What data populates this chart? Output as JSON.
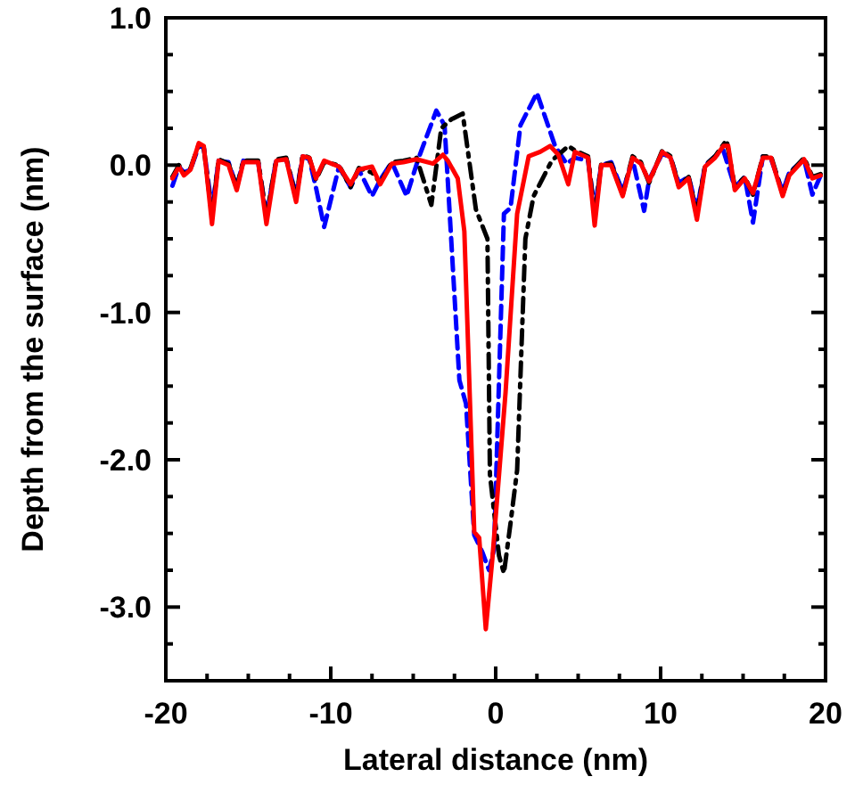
{
  "chart_data": {
    "type": "line",
    "xlabel": "Lateral distance (nm)",
    "ylabel": "Depth from the surface (nm)",
    "xlim": [
      -20,
      20
    ],
    "ylim": [
      -3.5,
      1.0
    ],
    "xticks": [
      -20,
      {
        "value": -17.5,
        "label": null
      },
      {
        "value": -15,
        "label": null
      },
      {
        "value": -12.5,
        "label": null
      },
      -10,
      {
        "value": -7.5,
        "label": null
      },
      {
        "value": -5,
        "label": null
      },
      {
        "value": -2.5,
        "label": null
      },
      0,
      {
        "value": 2.5,
        "label": null
      },
      {
        "value": 5,
        "label": null
      },
      {
        "value": 7.5,
        "label": null
      },
      10,
      {
        "value": 12.5,
        "label": null
      },
      {
        "value": 15,
        "label": null
      },
      {
        "value": 17.5,
        "label": null
      },
      20
    ],
    "yticks": [
      {
        "value": -3.5,
        "label": null
      },
      {
        "value": -3.25,
        "label": null
      },
      "-3.0",
      {
        "value": -2.75,
        "label": null
      },
      {
        "value": -2.5,
        "label": null
      },
      {
        "value": -2.25,
        "label": null
      },
      {
        "value": -2,
        "label": "-2.0"
      },
      {
        "value": -1.75,
        "label": null
      },
      {
        "value": -1.5,
        "label": null
      },
      {
        "value": -1.25,
        "label": null
      },
      {
        "value": -1,
        "label": "-1.0"
      },
      {
        "value": -0.75,
        "label": null
      },
      {
        "value": -0.5,
        "label": null
      },
      {
        "value": -0.25,
        "label": null
      },
      {
        "value": 0,
        "label": "0.0"
      },
      {
        "value": 0.25,
        "label": null
      },
      {
        "value": 0.5,
        "label": null
      },
      {
        "value": 0.75,
        "label": null
      },
      {
        "value": 1,
        "label": "1.0"
      }
    ],
    "grid": false,
    "marker": "none",
    "series": [
      {
        "color": "#0000ff",
        "line_style": "dashed",
        "x": [
          -19.6,
          -19.2,
          -18.9,
          -18.5,
          -18.0,
          -17.7,
          -17.2,
          -16.8,
          -16.2,
          -15.7,
          -15.3,
          -14.4,
          -13.9,
          -13.3,
          -12.7,
          -12.1,
          -11.7,
          -11.3,
          -10.9,
          -10.4,
          -9.5,
          -8.8,
          -8.3,
          -7.5,
          -7.0,
          -6.3,
          -5.4,
          -4.7,
          -3.6,
          -3.1,
          -2.2,
          -1.8,
          -1.3,
          -0.8,
          -0.4,
          -0.1,
          0.5,
          0.9,
          1.5,
          2.5,
          3.6,
          4.3,
          4.8,
          5.6,
          6.0,
          6.4,
          7.0,
          7.7,
          8.3,
          9.0,
          9.3,
          10.1,
          10.6,
          11.1,
          11.7,
          12.2,
          12.7,
          13.3,
          13.8,
          14.5,
          15.1,
          15.6,
          16.2,
          16.7,
          17.4,
          17.8,
          18.7,
          19.2,
          19.7
        ],
        "values": [
          -0.14,
          -0.01,
          -0.05,
          -0.03,
          0.13,
          0.12,
          -0.3,
          0.03,
          0.02,
          -0.15,
          0.03,
          0.02,
          -0.35,
          0.04,
          0.04,
          -0.2,
          0.06,
          0.04,
          -0.15,
          -0.42,
          -0.01,
          -0.15,
          -0.03,
          -0.21,
          -0.1,
          0.02,
          -0.21,
          0.04,
          0.37,
          0.27,
          -1.46,
          -1.62,
          -2.51,
          -2.63,
          -2.75,
          -2.61,
          -0.33,
          -0.29,
          0.27,
          0.49,
          0.13,
          0.01,
          0.05,
          0.03,
          -0.3,
          0.0,
          0.02,
          -0.18,
          0.04,
          -0.31,
          -0.1,
          0.08,
          0.05,
          -0.12,
          -0.08,
          -0.3,
          0.0,
          0.06,
          0.1,
          -0.15,
          -0.08,
          -0.39,
          0.06,
          0.04,
          -0.18,
          -0.05,
          0.04,
          -0.2,
          -0.07
        ]
      },
      {
        "color": "#000000",
        "line_style": "dashdot",
        "x": [
          -19.6,
          -19.2,
          -18.9,
          -18.5,
          -18.0,
          -17.7,
          -17.2,
          -16.8,
          -16.2,
          -15.7,
          -15.3,
          -14.4,
          -13.9,
          -13.3,
          -12.7,
          -12.1,
          -11.7,
          -11.3,
          -10.9,
          -10.4,
          -9.5,
          -8.8,
          -8.3,
          -7.5,
          -7.0,
          -6.3,
          -5.6,
          -4.8,
          -3.9,
          -3.3,
          -2.7,
          -2.0,
          -1.2,
          -0.5,
          -0.35,
          0.2,
          0.5,
          0.9,
          1.3,
          1.8,
          2.3,
          3.4,
          4.4,
          4.8,
          5.6,
          6.0,
          6.4,
          7.0,
          7.7,
          8.3,
          8.8,
          9.3,
          10.1,
          10.6,
          11.1,
          11.7,
          12.2,
          12.7,
          13.3,
          14.0,
          14.5,
          15.1,
          15.6,
          16.2,
          16.7,
          17.4,
          17.8,
          18.7,
          19.2,
          19.7
        ],
        "values": [
          -0.08,
          0.0,
          -0.06,
          -0.02,
          0.14,
          0.12,
          -0.35,
          0.04,
          0.01,
          -0.15,
          0.03,
          0.03,
          -0.35,
          0.04,
          0.05,
          -0.22,
          0.07,
          0.05,
          -0.1,
          0.02,
          0.0,
          -0.15,
          -0.02,
          -0.05,
          -0.12,
          0.02,
          0.03,
          0.05,
          -0.27,
          0.25,
          0.31,
          0.35,
          -0.3,
          -0.5,
          -2.1,
          -2.65,
          -2.77,
          -2.43,
          -2.07,
          -0.5,
          -0.21,
          0.03,
          0.13,
          0.1,
          0.06,
          -0.35,
          0.01,
          0.01,
          -0.2,
          0.06,
          0.02,
          -0.12,
          0.1,
          0.06,
          -0.14,
          -0.08,
          -0.33,
          0.0,
          0.06,
          0.17,
          -0.15,
          -0.08,
          -0.2,
          0.06,
          0.06,
          -0.2,
          -0.06,
          0.05,
          -0.08,
          -0.06
        ]
      },
      {
        "color": "#ff0000",
        "line_style": "solid",
        "x": [
          -19.6,
          -19.2,
          -18.9,
          -18.5,
          -18.0,
          -17.7,
          -17.2,
          -16.8,
          -16.2,
          -15.7,
          -15.3,
          -14.4,
          -13.9,
          -13.3,
          -12.7,
          -12.1,
          -11.7,
          -11.3,
          -10.9,
          -10.4,
          -9.5,
          -8.8,
          -8.3,
          -7.5,
          -7.0,
          -6.3,
          -5.6,
          -4.8,
          -3.8,
          -3.2,
          -2.9,
          -2.3,
          -1.9,
          -1.3,
          -1.0,
          -0.6,
          -0.2,
          0.6,
          1.3,
          2.0,
          2.7,
          3.3,
          3.8,
          4.4,
          4.8,
          5.6,
          6.0,
          6.4,
          7.0,
          7.7,
          8.3,
          8.8,
          9.3,
          10.1,
          10.6,
          11.1,
          11.7,
          12.2,
          12.7,
          13.3,
          13.8,
          14.1,
          14.5,
          15.1,
          15.6,
          16.2,
          16.7,
          17.4,
          17.8,
          18.7,
          19.2,
          19.7
        ],
        "values": [
          -0.09,
          -0.01,
          -0.07,
          -0.03,
          0.15,
          0.13,
          -0.4,
          0.03,
          0.0,
          -0.17,
          0.02,
          0.02,
          -0.4,
          0.03,
          0.04,
          -0.25,
          0.06,
          0.05,
          -0.09,
          0.03,
          -0.01,
          -0.13,
          -0.03,
          -0.01,
          -0.13,
          0.01,
          0.02,
          0.04,
          0.01,
          0.07,
          0.03,
          -0.09,
          -0.45,
          -2.49,
          -2.53,
          -3.15,
          -2.67,
          -1.54,
          -0.33,
          0.06,
          0.09,
          0.13,
          0.07,
          -0.13,
          0.09,
          0.05,
          -0.41,
          0.0,
          0.0,
          -0.21,
          0.05,
          0.01,
          -0.11,
          0.09,
          0.05,
          -0.15,
          -0.09,
          -0.37,
          -0.01,
          0.05,
          0.13,
          0.13,
          -0.17,
          -0.09,
          -0.19,
          0.05,
          0.05,
          -0.21,
          -0.07,
          0.04,
          -0.09,
          -0.07
        ]
      }
    ]
  }
}
